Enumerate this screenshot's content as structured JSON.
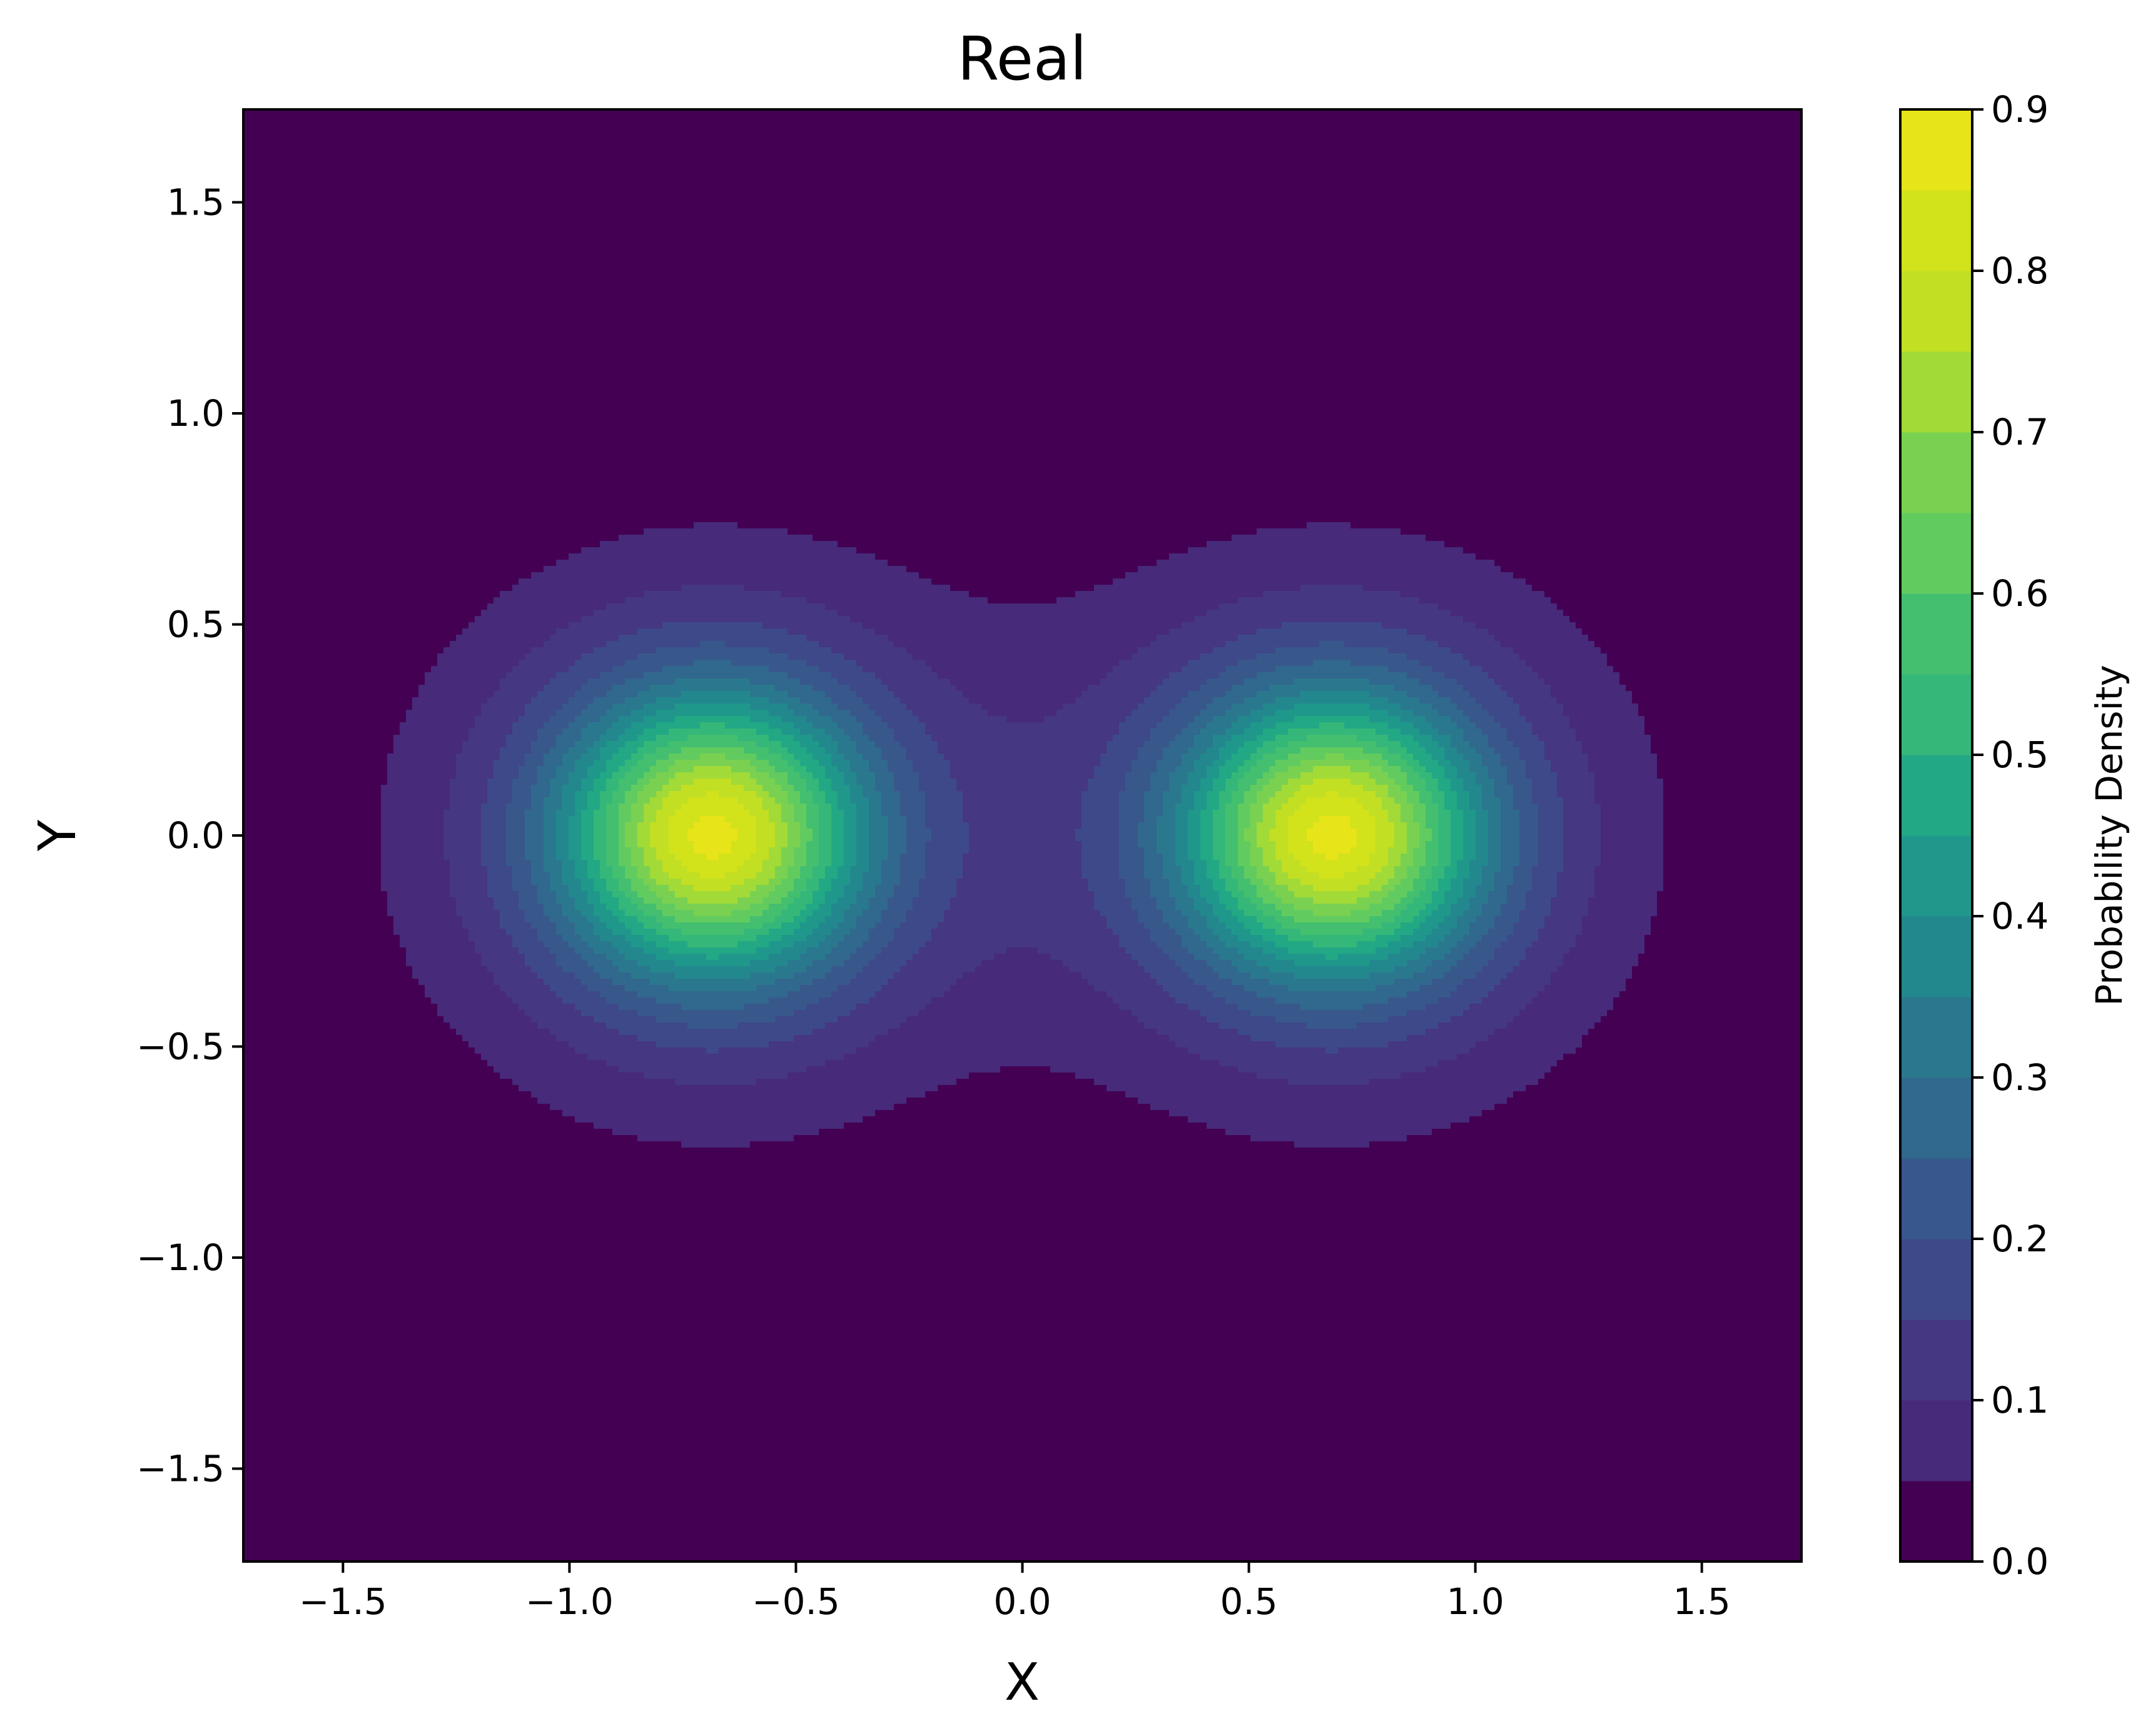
{
  "chart_data": {
    "type": "contour",
    "title": "Real",
    "xlabel": "X",
    "ylabel": "Y",
    "xlim": [
      -1.72,
      1.72
    ],
    "ylim": [
      -1.72,
      1.72
    ],
    "x_ticks": [
      -1.5,
      -1.0,
      -0.5,
      0.0,
      0.5,
      1.0,
      1.5
    ],
    "y_ticks": [
      -1.5,
      -1.0,
      -0.5,
      0.0,
      0.5,
      1.0,
      1.5
    ],
    "x_tick_labels": [
      "−1.5",
      "−1.0",
      "−0.5",
      "0.0",
      "0.5",
      "1.0",
      "1.5"
    ],
    "y_tick_labels": [
      "−1.5",
      "−1.0",
      "−0.5",
      "0.0",
      "0.5",
      "1.0",
      "1.5"
    ],
    "density": {
      "description": "Sum of two Gaussian peaks",
      "peaks": [
        {
          "x": -0.685,
          "y": 0.0,
          "amplitude": 0.9,
          "sigma": 0.22
        },
        {
          "x": 0.685,
          "y": 0.0,
          "amplitude": 0.9,
          "sigma": 0.22
        }
      ],
      "background_sigma": 0.42,
      "background_amplitude": 0.22
    },
    "levels": [
      0.0,
      0.05,
      0.1,
      0.15,
      0.2,
      0.25,
      0.3,
      0.35,
      0.4,
      0.45,
      0.5,
      0.55,
      0.6,
      0.65,
      0.7,
      0.75,
      0.8,
      0.85,
      0.9
    ],
    "level_colors": [
      "#440154",
      "#472a7a",
      "#453781",
      "#3e4989",
      "#38588c",
      "#31688e",
      "#2a788e",
      "#23888e",
      "#1f988b",
      "#22a884",
      "#35b779",
      "#44bf70",
      "#62cb5f",
      "#7ad151",
      "#a2da37",
      "#c2df23",
      "#d2e21b",
      "#e7e419"
    ],
    "colorbar": {
      "label": "Probability Density",
      "min": 0.0,
      "max": 0.9,
      "ticks": [
        0.0,
        0.1,
        0.2,
        0.3,
        0.4,
        0.5,
        0.6,
        0.7,
        0.8,
        0.9
      ],
      "tick_labels": [
        "0.0",
        "0.1",
        "0.2",
        "0.3",
        "0.4",
        "0.5",
        "0.6",
        "0.7",
        "0.8",
        "0.9"
      ]
    },
    "background_color": "#440154"
  }
}
